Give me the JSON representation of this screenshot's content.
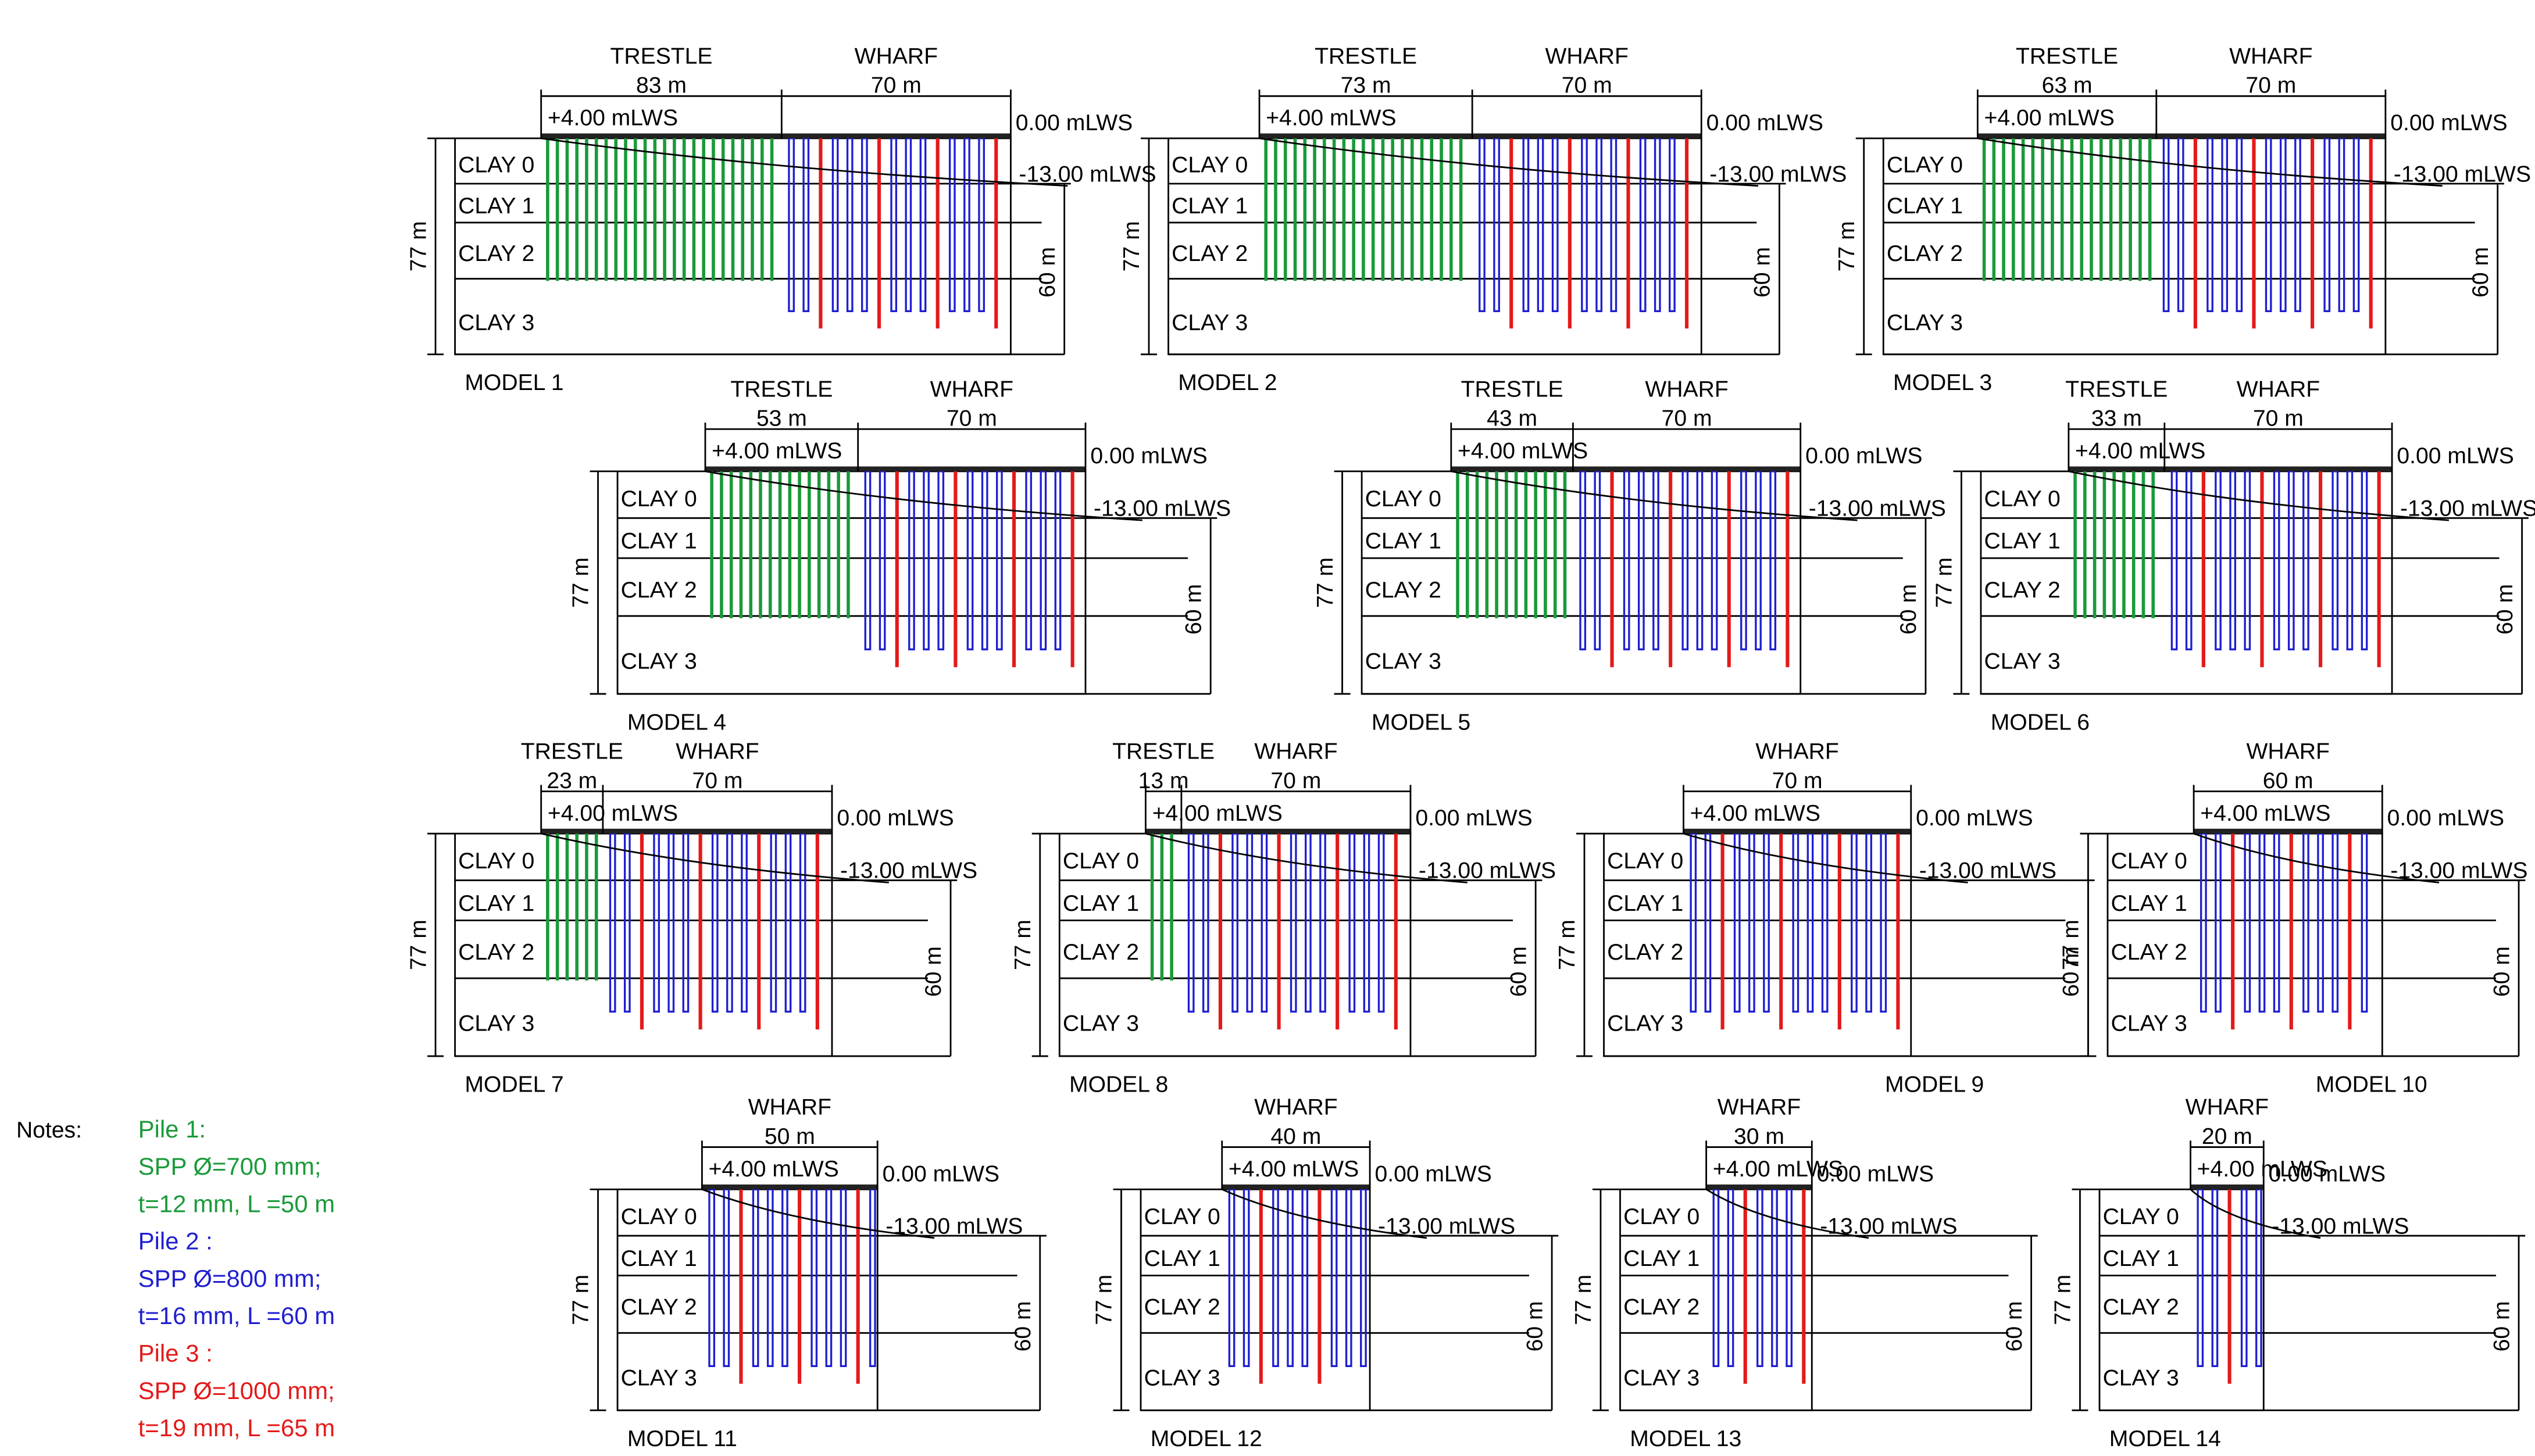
{
  "models": [
    {
      "label": "MODEL 1",
      "trestle": "TRESTLE",
      "trestle_length": "83 m",
      "wharf": "WHARF",
      "wharf_length": "70 m",
      "deck": "+4.00 mLWS",
      "water": "0.00 mLWS",
      "seabed": "-13.00 mLWS",
      "depth": "77 m",
      "pile_depth": "60 m",
      "layers": [
        "CLAY 0",
        "CLAY 1",
        "CLAY 2",
        "CLAY 3"
      ]
    },
    {
      "label": "MODEL 2",
      "trestle": "TRESTLE",
      "trestle_length": "73 m",
      "wharf": "WHARF",
      "wharf_length": "70 m",
      "deck": "+4.00 mLWS",
      "water": "0.00 mLWS",
      "seabed": "-13.00 mLWS",
      "depth": "77 m",
      "pile_depth": "60 m",
      "layers": [
        "CLAY 0",
        "CLAY 1",
        "CLAY 2",
        "CLAY 3"
      ]
    },
    {
      "label": "MODEL 3",
      "trestle": "TRESTLE",
      "trestle_length": "63 m",
      "wharf": "WHARF",
      "wharf_length": "70 m",
      "deck": "+4.00 mLWS",
      "water": "0.00 mLWS",
      "seabed": "-13.00 mLWS",
      "depth": "77 m",
      "pile_depth": "60 m",
      "layers": [
        "CLAY 0",
        "CLAY 1",
        "CLAY 2",
        "CLAY 3"
      ]
    },
    {
      "label": "MODEL 4",
      "trestle": "TRESTLE",
      "trestle_length": "53 m",
      "wharf": "WHARF",
      "wharf_length": "70 m",
      "deck": "+4.00 mLWS",
      "water": "0.00 mLWS",
      "seabed": "-13.00 mLWS",
      "depth": "77 m",
      "pile_depth": "60 m",
      "layers": [
        "CLAY 0",
        "CLAY 1",
        "CLAY 2",
        "CLAY 3"
      ]
    },
    {
      "label": "MODEL 5",
      "trestle": "TRESTLE",
      "trestle_length": "43 m",
      "wharf": "WHARF",
      "wharf_length": "70 m",
      "deck": "+4.00 mLWS",
      "water": "0.00 mLWS",
      "seabed": "-13.00 mLWS",
      "depth": "77 m",
      "pile_depth": "60 m",
      "layers": [
        "CLAY 0",
        "CLAY 1",
        "CLAY 2",
        "CLAY 3"
      ]
    },
    {
      "label": "MODEL 6",
      "trestle": "TRESTLE",
      "trestle_length": "33 m",
      "wharf": "WHARF",
      "wharf_length": "70 m",
      "deck": "+4.00 mLWS",
      "water": "0.00 mLWS",
      "seabed": "-13.00 mLWS",
      "depth": "77 m",
      "pile_depth": "60 m",
      "layers": [
        "CLAY 0",
        "CLAY 1",
        "CLAY 2",
        "CLAY 3"
      ]
    },
    {
      "label": "MODEL 7",
      "trestle": "TRESTLE",
      "trestle_length": "23 m",
      "wharf": "WHARF",
      "wharf_length": "70 m",
      "deck": "+4.00 mLWS",
      "water": "0.00 mLWS",
      "seabed": "-13.00 mLWS",
      "depth": "77 m",
      "pile_depth": "60 m",
      "layers": [
        "CLAY 0",
        "CLAY 1",
        "CLAY 2",
        "CLAY 3"
      ]
    },
    {
      "label": "MODEL 8",
      "trestle": "TRESTLE",
      "trestle_length": "13 m",
      "wharf": "WHARF",
      "wharf_length": "70 m",
      "deck": "+4.00 mLWS",
      "water": "0.00 mLWS",
      "seabed": "-13.00 mLWS",
      "depth": "77 m",
      "pile_depth": "60 m",
      "layers": [
        "CLAY 0",
        "CLAY 1",
        "CLAY 2",
        "CLAY 3"
      ]
    },
    {
      "label": "MODEL 9",
      "wharf": "WHARF",
      "wharf_length": "70 m",
      "deck": "+4.00 mLWS",
      "water": "0.00 mLWS",
      "seabed": "-13.00 mLWS",
      "depth": "77 m",
      "pile_depth": "60 m",
      "layers": [
        "CLAY 0",
        "CLAY 1",
        "CLAY 2",
        "CLAY 3"
      ]
    },
    {
      "label": "MODEL 10",
      "wharf": "WHARF",
      "wharf_length": "60 m",
      "deck": "+4.00 mLWS",
      "water": "0.00 mLWS",
      "seabed": "-13.00 mLWS",
      "depth": "77 m",
      "pile_depth": "60 m",
      "layers": [
        "CLAY 0",
        "CLAY 1",
        "CLAY 2",
        "CLAY 3"
      ]
    },
    {
      "label": "MODEL 11",
      "wharf": "WHARF",
      "wharf_length": "50 m",
      "deck": "+4.00 mLWS",
      "water": "0.00 mLWS",
      "seabed": "-13.00 mLWS",
      "depth": "77 m",
      "pile_depth": "60 m",
      "layers": [
        "CLAY 0",
        "CLAY 1",
        "CLAY 2",
        "CLAY 3"
      ]
    },
    {
      "label": "MODEL 12",
      "wharf": "WHARF",
      "wharf_length": "40 m",
      "deck": "+4.00 mLWS",
      "water": "0.00 mLWS",
      "seabed": "-13.00 mLWS",
      "depth": "77 m",
      "pile_depth": "60 m",
      "layers": [
        "CLAY 0",
        "CLAY 1",
        "CLAY 2",
        "CLAY 3"
      ]
    },
    {
      "label": "MODEL 13",
      "wharf": "WHARF",
      "wharf_length": "30 m",
      "deck": "+4.00 mLWS",
      "water": "0.00 mLWS",
      "seabed": "-13.00 mLWS",
      "depth": "77 m",
      "pile_depth": "60 m",
      "layers": [
        "CLAY 0",
        "CLAY 1",
        "CLAY 2",
        "CLAY 3"
      ]
    },
    {
      "label": "MODEL 14",
      "wharf": "WHARF",
      "wharf_length": "20 m",
      "deck": "+4.00 mLWS",
      "water": "0.00 mLWS",
      "seabed": "-13.00 mLWS",
      "depth": "77 m",
      "pile_depth": "60 m",
      "layers": [
        "CLAY 0",
        "CLAY 1",
        "CLAY 2",
        "CLAY 3"
      ]
    }
  ],
  "notes": {
    "heading": "Notes:",
    "piles": [
      {
        "name": "Pile 1:",
        "spec": "SPP Ø=700 mm;",
        "size": "t=12 mm, L =50 m"
      },
      {
        "name": "Pile 2 :",
        "spec": "SPP Ø=800 mm;",
        "size": "t=16 mm, L =60 m"
      },
      {
        "name": "Pile 3 :",
        "spec": "SPP Ø=1000 mm;",
        "size": "t=19 mm, L =65 m"
      }
    ]
  }
}
